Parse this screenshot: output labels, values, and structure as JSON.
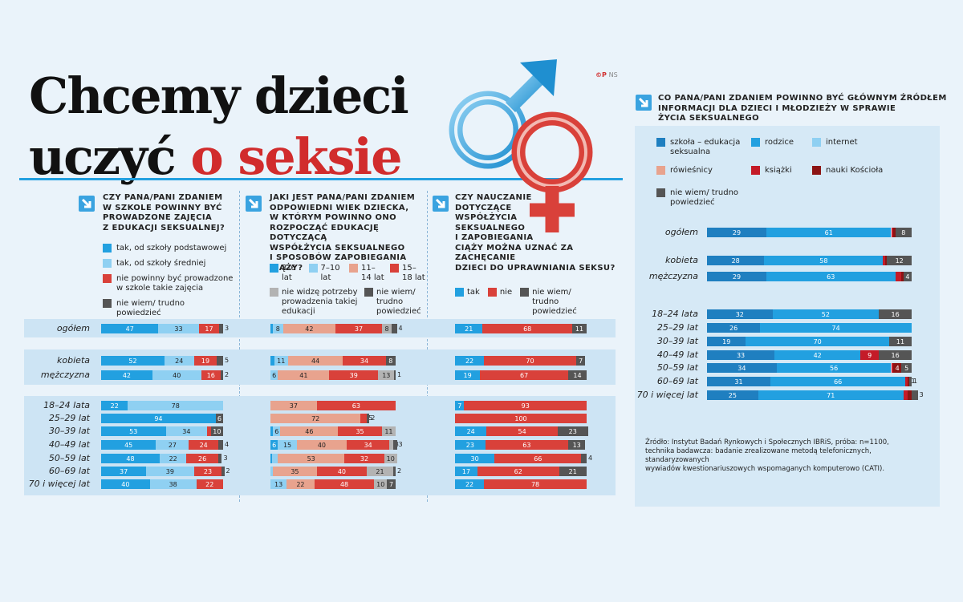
{
  "header": {
    "title_line1": "Chcemy dzieci",
    "title_line2a": "uczyć",
    "title_line2b": "o seksie",
    "credit_symbols": "©P",
    "credit_text": "NS"
  },
  "colors": {
    "dark_blue": "#1f7fc0",
    "blue": "#22a0e0",
    "light_blue": "#8fd0f2",
    "salmon": "#e8a38e",
    "red": "#d9413a",
    "crimson": "#c41b28",
    "maroon": "#8c1414",
    "grey": "#555555",
    "light_grey": "#b3b3b3",
    "background": "#eaf3fa"
  },
  "icons": {
    "arrow": "arrow-down-right-icon",
    "male": "male-symbol-icon",
    "female": "female-symbol-icon"
  },
  "q1": {
    "title": [
      "Czy Pana/Pani zdaniem",
      "w szkole powinny być",
      "prowadzone zajęcia",
      "z  edukacji seksualnej?"
    ],
    "legend": [
      {
        "label": "tak, od szkoły podstawowej",
        "color": "#22a0e0"
      },
      {
        "label": "tak, od szkoły średniej",
        "color": "#8fd0f2"
      },
      {
        "label": "nie powinny być prowadzone w szkole takie zajęcia",
        "color": "#d9413a"
      },
      {
        "label": "nie wiem/ trudno powiedzieć",
        "color": "#555555"
      }
    ]
  },
  "q2": {
    "title": [
      "Jaki jest Pana/Pani zdaniem",
      "odpowiedni wiek dziecka,",
      "w którym powinno ono",
      "rozpocząć edukację dotyczącą",
      "współżycia seksualnego",
      "i sposobów zapobiegania ciąży?"
    ],
    "legend": [
      {
        "label": "3–6 lat",
        "color": "#22a0e0"
      },
      {
        "label": "7–10 lat",
        "color": "#8fd0f2"
      },
      {
        "label": "11–14 lat",
        "color": "#e8a38e"
      },
      {
        "label": "15–18 lat",
        "color": "#d9413a"
      },
      {
        "label": "nie widzę potrzeby prowadzenia takiej edukacji",
        "color": "#b3b3b3"
      },
      {
        "label": "nie wiem/ trudno powiedzieć",
        "color": "#555555"
      }
    ]
  },
  "q3": {
    "title": [
      "Czy nauczanie",
      "dotyczące",
      "współżycia",
      "seksualnego",
      "i zapobiegania",
      "ciąży można uznać za zachęcanie",
      "dzieci do uprawniania seksu?"
    ],
    "legend": [
      {
        "label": "tak",
        "color": "#22a0e0"
      },
      {
        "label": "nie",
        "color": "#d9413a"
      },
      {
        "label": "nie wiem/ trudno powiedzieć",
        "color": "#555555"
      }
    ]
  },
  "q4": {
    "title": [
      "Co Pana/Pani zdaniem powinno być głównym źródłem",
      "informacji dla dzieci i młodzieży w sprawie",
      "życia seksualnego"
    ],
    "legend": [
      {
        "label": "szkoła – edukacja seksualna",
        "color": "#1f7fc0"
      },
      {
        "label": "rodzice",
        "color": "#22a0e0"
      },
      {
        "label": "internet",
        "color": "#8fd0f2"
      },
      {
        "label": "rówieśnicy",
        "color": "#e8a38e"
      },
      {
        "label": "książki",
        "color": "#c41b28"
      },
      {
        "label": "nauki Kościoła",
        "color": "#8c1414"
      },
      {
        "label": "nie wiem/ trudno powiedzieć",
        "color": "#555555"
      }
    ]
  },
  "rows": [
    "ogółem",
    "kobieta",
    "mężczyzna",
    "18–24 lata",
    "25–29 lat",
    "30–39 lat",
    "40–49 lat",
    "50–59 lat",
    "60–69 lat",
    "70 i więcej lat"
  ],
  "source": [
    "Źródło: Instytut Badań Rynkowych i Społecznych IBRiS, próba: n=1100,",
    "technika badawcza: badanie zrealizowane metodą telefonicznych, standaryzowanych",
    "wywiadów kwestionariuszowych wspomaganych komputerowo (CATI)."
  ],
  "chart_data": [
    {
      "type": "bar",
      "title": "Czy Pana/Pani zdaniem w szkole powinny być prowadzone zajęcia z edukacji seksualnej?",
      "categories": [
        "ogółem",
        "kobieta",
        "mężczyzna",
        "18–24 lata",
        "25–29 lat",
        "30–39 lat",
        "40–49 lat",
        "50–59 lat",
        "60–69 lat",
        "70 i więcej lat"
      ],
      "series": [
        {
          "name": "tak, od szkoły podstawowej",
          "color": "#22a0e0",
          "values": [
            47,
            52,
            42,
            22,
            94,
            53,
            45,
            48,
            37,
            40
          ]
        },
        {
          "name": "tak, od szkoły średniej",
          "color": "#8fd0f2",
          "values": [
            33,
            24,
            40,
            78,
            0,
            34,
            27,
            22,
            39,
            38
          ]
        },
        {
          "name": "nie powinny być prowadzone w szkole takie zajęcia",
          "color": "#d9413a",
          "values": [
            17,
            19,
            16,
            0,
            0,
            3,
            24,
            26,
            23,
            22
          ]
        },
        {
          "name": "nie wiem/ trudno powiedzieć",
          "color": "#555555",
          "values": [
            3,
            5,
            2,
            0,
            6,
            10,
            4,
            3,
            2,
            0
          ]
        }
      ]
    },
    {
      "type": "bar",
      "title": "Jaki jest Pana/Pani zdaniem odpowiedni wiek dziecka, w którym powinno ono rozpocząć edukację dotyczącą współżycia seksualnego i sposobów zapobiegania ciąży?",
      "categories": [
        "ogółem",
        "kobieta",
        "mężczyzna",
        "18–24 lata",
        "25–29 lat",
        "30–39 lat",
        "40–49 lat",
        "50–59 lat",
        "60–69 lat",
        "70 i więcej lat"
      ],
      "series": [
        {
          "name": "3–6 lat",
          "color": "#22a0e0",
          "values": [
            2,
            3,
            0,
            0,
            0,
            2,
            6,
            1,
            0,
            0
          ]
        },
        {
          "name": "7–10 lat",
          "color": "#8fd0f2",
          "values": [
            8,
            11,
            6,
            0,
            0,
            6,
            15,
            5,
            2,
            13
          ]
        },
        {
          "name": "11–14 lat",
          "color": "#e8a38e",
          "values": [
            42,
            44,
            41,
            37,
            72,
            46,
            40,
            53,
            35,
            22
          ]
        },
        {
          "name": "15–18 lat",
          "color": "#d9413a",
          "values": [
            37,
            34,
            39,
            63,
            5,
            35,
            34,
            32,
            40,
            48
          ]
        },
        {
          "name": "nie widzę potrzeby prowadzenia takiej edukacji",
          "color": "#b3b3b3",
          "values": [
            8,
            0,
            13,
            0,
            0,
            11,
            3,
            10,
            21,
            10
          ]
        },
        {
          "name": "nie wiem/ trudno powiedzieć",
          "color": "#555555",
          "values": [
            4,
            8,
            1,
            0,
            2,
            0,
            3,
            0,
            2,
            7
          ]
        }
      ]
    },
    {
      "type": "bar",
      "title": "Czy nauczanie dotyczące współżycia seksualnego i zapobiegania ciąży można uznać za zachęcanie dzieci do uprawniania seksu?",
      "categories": [
        "ogółem",
        "kobieta",
        "mężczyzna",
        "18–24 lata",
        "25–29 lat",
        "30–39 lat",
        "40–49 lat",
        "50–59 lat",
        "60–69 lat",
        "70 i więcej lat"
      ],
      "series": [
        {
          "name": "tak",
          "color": "#22a0e0",
          "values": [
            21,
            22,
            19,
            7,
            0,
            24,
            23,
            30,
            17,
            22
          ]
        },
        {
          "name": "nie",
          "color": "#d9413a",
          "values": [
            68,
            70,
            67,
            93,
            100,
            54,
            63,
            66,
            62,
            78
          ]
        },
        {
          "name": "nie wiem/ trudno powiedzieć",
          "color": "#555555",
          "values": [
            11,
            7,
            14,
            0,
            0,
            23,
            13,
            4,
            21,
            0
          ]
        }
      ]
    },
    {
      "type": "bar",
      "title": "Co Pana/Pani zdaniem powinno być głównym źródłem informacji dla dzieci i młodzieży w sprawie życia seksualnego",
      "categories": [
        "ogółem",
        "kobieta",
        "mężczyzna",
        "18–24 lata",
        "25–29 lat",
        "30–39 lat",
        "40–49 lat",
        "50–59 lat",
        "60–69 lat",
        "70 i więcej lat"
      ],
      "series": [
        {
          "name": "szkoła – edukacja seksualna",
          "color": "#1f7fc0",
          "values": [
            29,
            28,
            29,
            32,
            26,
            19,
            33,
            34,
            31,
            25
          ]
        },
        {
          "name": "rodzice",
          "color": "#22a0e0",
          "values": [
            61,
            58,
            63,
            52,
            74,
            70,
            42,
            56,
            66,
            71
          ]
        },
        {
          "name": "internet",
          "color": "#8fd0f2",
          "values": [
            0,
            0,
            0,
            0,
            0,
            0,
            0,
            0,
            0,
            0
          ]
        },
        {
          "name": "rówieśnicy",
          "color": "#e8a38e",
          "values": [
            0,
            0,
            0,
            0,
            0,
            0,
            0,
            0,
            0,
            0
          ]
        },
        {
          "name": "książki",
          "color": "#c41b28",
          "values": [
            1,
            1,
            3,
            0,
            0,
            0,
            9,
            1,
            1,
            2
          ]
        },
        {
          "name": "nauki Kościoła",
          "color": "#8c1414",
          "values": [
            1,
            1,
            1,
            0,
            0,
            0,
            0,
            4,
            1,
            2
          ]
        },
        {
          "name": "nie wiem/ trudno powiedzieć",
          "color": "#555555",
          "values": [
            8,
            12,
            4,
            16,
            0,
            11,
            16,
            5,
            1,
            3
          ]
        }
      ]
    }
  ]
}
